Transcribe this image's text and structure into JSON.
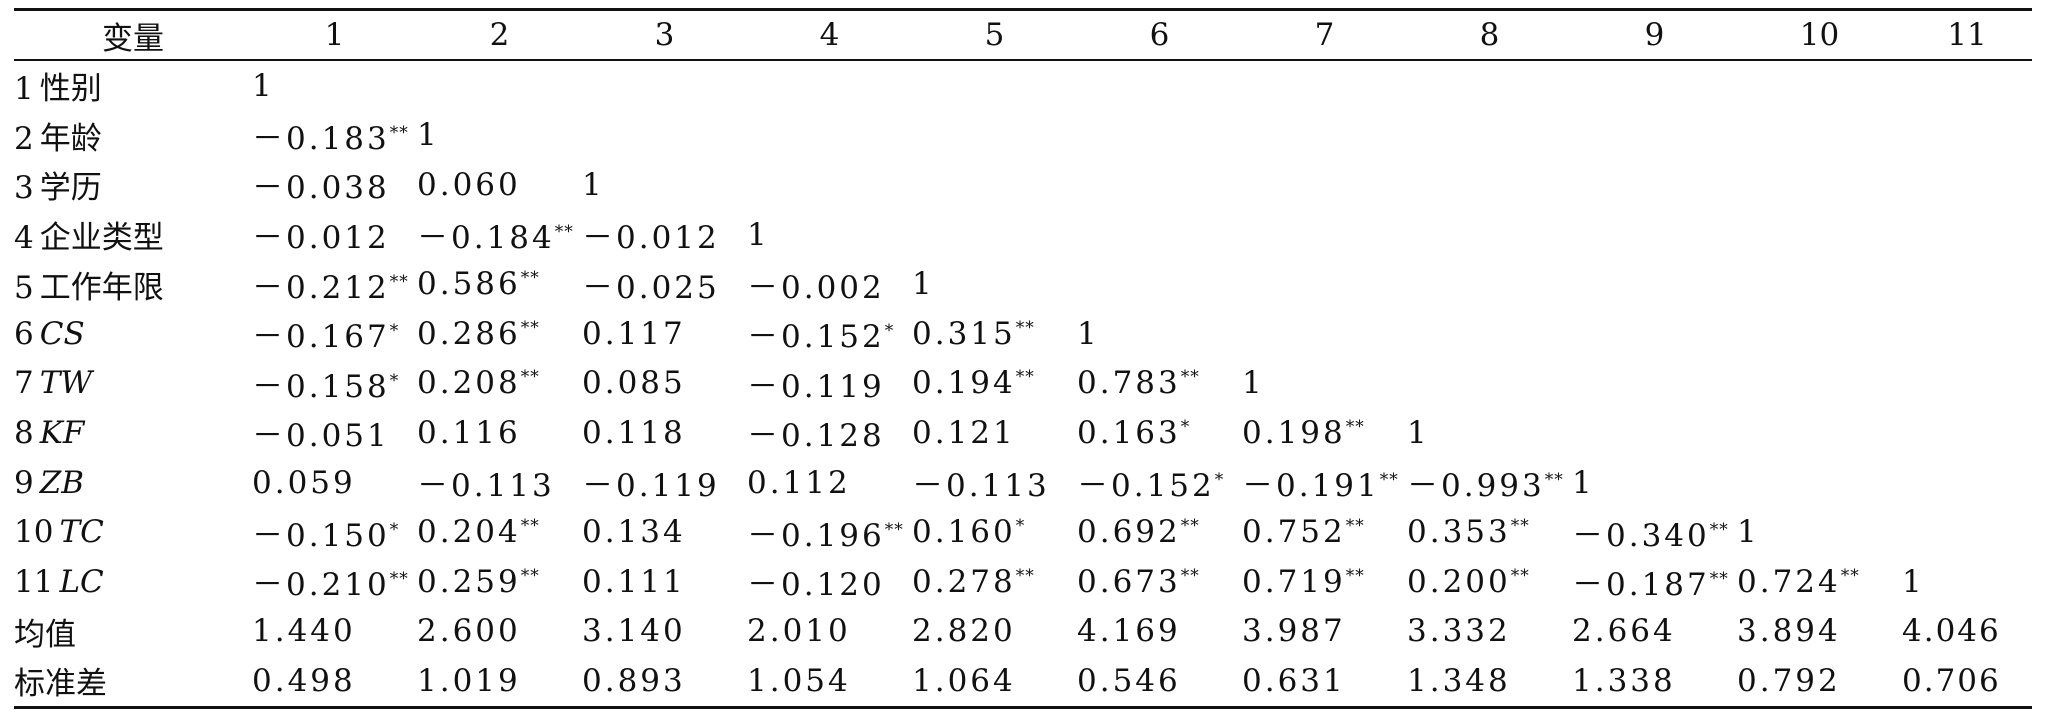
{
  "table": {
    "header": [
      "变量",
      "1",
      "2",
      "3",
      "4",
      "5",
      "6",
      "7",
      "8",
      "9",
      "10",
      "11"
    ],
    "rows": [
      {
        "num": "1",
        "label": "性别",
        "italic": false,
        "cells": [
          [
            "1",
            ""
          ],
          [
            "",
            ""
          ],
          [
            "",
            ""
          ],
          [
            "",
            ""
          ],
          [
            "",
            ""
          ],
          [
            "",
            ""
          ],
          [
            "",
            ""
          ],
          [
            "",
            ""
          ],
          [
            "",
            ""
          ],
          [
            "",
            ""
          ],
          [
            "",
            ""
          ]
        ]
      },
      {
        "num": "2",
        "label": "年龄",
        "italic": false,
        "cells": [
          [
            "－0.183",
            "**"
          ],
          [
            "1",
            ""
          ],
          [
            "",
            ""
          ],
          [
            "",
            ""
          ],
          [
            "",
            ""
          ],
          [
            "",
            ""
          ],
          [
            "",
            ""
          ],
          [
            "",
            ""
          ],
          [
            "",
            ""
          ],
          [
            "",
            ""
          ],
          [
            "",
            ""
          ]
        ]
      },
      {
        "num": "3",
        "label": "学历",
        "italic": false,
        "cells": [
          [
            "－0.038",
            ""
          ],
          [
            "0.060",
            ""
          ],
          [
            "1",
            ""
          ],
          [
            "",
            ""
          ],
          [
            "",
            ""
          ],
          [
            "",
            ""
          ],
          [
            "",
            ""
          ],
          [
            "",
            ""
          ],
          [
            "",
            ""
          ],
          [
            "",
            ""
          ],
          [
            "",
            ""
          ]
        ]
      },
      {
        "num": "4",
        "label": "企业类型",
        "italic": false,
        "cells": [
          [
            "－0.012",
            ""
          ],
          [
            "－0.184",
            "**"
          ],
          [
            "－0.012",
            ""
          ],
          [
            "1",
            ""
          ],
          [
            "",
            ""
          ],
          [
            "",
            ""
          ],
          [
            "",
            ""
          ],
          [
            "",
            ""
          ],
          [
            "",
            ""
          ],
          [
            "",
            ""
          ],
          [
            "",
            ""
          ]
        ]
      },
      {
        "num": "5",
        "label": "工作年限",
        "italic": false,
        "cells": [
          [
            "－0.212",
            "**"
          ],
          [
            "0.586",
            "**"
          ],
          [
            "－0.025",
            ""
          ],
          [
            "－0.002",
            ""
          ],
          [
            "1",
            ""
          ],
          [
            "",
            ""
          ],
          [
            "",
            ""
          ],
          [
            "",
            ""
          ],
          [
            "",
            ""
          ],
          [
            "",
            ""
          ],
          [
            "",
            ""
          ]
        ]
      },
      {
        "num": "6",
        "label": "CS",
        "italic": true,
        "cells": [
          [
            "－0.167",
            "*"
          ],
          [
            "0.286",
            "**"
          ],
          [
            "0.117",
            ""
          ],
          [
            "－0.152",
            "*"
          ],
          [
            "0.315",
            "**"
          ],
          [
            "1",
            ""
          ],
          [
            "",
            ""
          ],
          [
            "",
            ""
          ],
          [
            "",
            ""
          ],
          [
            "",
            ""
          ],
          [
            "",
            ""
          ]
        ]
      },
      {
        "num": "7",
        "label": "TW",
        "italic": true,
        "cells": [
          [
            "－0.158",
            "*"
          ],
          [
            "0.208",
            "**"
          ],
          [
            "0.085",
            ""
          ],
          [
            "－0.119",
            ""
          ],
          [
            "0.194",
            "**"
          ],
          [
            "0.783",
            "**"
          ],
          [
            "1",
            ""
          ],
          [
            "",
            ""
          ],
          [
            "",
            ""
          ],
          [
            "",
            ""
          ],
          [
            "",
            ""
          ]
        ]
      },
      {
        "num": "8",
        "label": "KF",
        "italic": true,
        "cells": [
          [
            "－0.051",
            ""
          ],
          [
            "0.116",
            ""
          ],
          [
            "0.118",
            ""
          ],
          [
            "－0.128",
            ""
          ],
          [
            "0.121",
            ""
          ],
          [
            "0.163",
            "*"
          ],
          [
            "0.198",
            "**"
          ],
          [
            "1",
            ""
          ],
          [
            "",
            ""
          ],
          [
            "",
            ""
          ],
          [
            "",
            ""
          ]
        ]
      },
      {
        "num": "9",
        "label": "ZB",
        "italic": true,
        "cells": [
          [
            "0.059",
            ""
          ],
          [
            "－0.113",
            ""
          ],
          [
            "－0.119",
            ""
          ],
          [
            "0.112",
            ""
          ],
          [
            "－0.113",
            ""
          ],
          [
            "－0.152",
            "*"
          ],
          [
            "－0.191",
            "**"
          ],
          [
            "－0.993",
            "**"
          ],
          [
            "1",
            ""
          ],
          [
            "",
            ""
          ],
          [
            "",
            ""
          ]
        ]
      },
      {
        "num": "10",
        "label": "TC",
        "italic": true,
        "cells": [
          [
            "－0.150",
            "*"
          ],
          [
            "0.204",
            "**"
          ],
          [
            "0.134",
            ""
          ],
          [
            "－0.196",
            "**"
          ],
          [
            "0.160",
            "*"
          ],
          [
            "0.692",
            "**"
          ],
          [
            "0.752",
            "**"
          ],
          [
            "0.353",
            "**"
          ],
          [
            "－0.340",
            "**"
          ],
          [
            "1",
            ""
          ],
          [
            "",
            ""
          ]
        ]
      },
      {
        "num": "11",
        "label": "LC",
        "italic": true,
        "cells": [
          [
            "－0.210",
            "**"
          ],
          [
            "0.259",
            "**"
          ],
          [
            "0.111",
            ""
          ],
          [
            "－0.120",
            ""
          ],
          [
            "0.278",
            "**"
          ],
          [
            "0.673",
            "**"
          ],
          [
            "0.719",
            "**"
          ],
          [
            "0.200",
            "**"
          ],
          [
            "－0.187",
            "**"
          ],
          [
            "0.724",
            "**"
          ],
          [
            "1",
            ""
          ]
        ]
      },
      {
        "num": "",
        "label": "均值",
        "italic": false,
        "cells": [
          [
            "1.440",
            ""
          ],
          [
            "2.600",
            ""
          ],
          [
            "3.140",
            ""
          ],
          [
            "2.010",
            ""
          ],
          [
            "2.820",
            ""
          ],
          [
            "4.169",
            ""
          ],
          [
            "3.987",
            ""
          ],
          [
            "3.332",
            ""
          ],
          [
            "2.664",
            ""
          ],
          [
            "3.894",
            ""
          ],
          [
            "4.046",
            ""
          ]
        ]
      },
      {
        "num": "",
        "label": "标准差",
        "italic": false,
        "cells": [
          [
            "0.498",
            ""
          ],
          [
            "1.019",
            ""
          ],
          [
            "0.893",
            ""
          ],
          [
            "1.054",
            ""
          ],
          [
            "1.064",
            ""
          ],
          [
            "0.546",
            ""
          ],
          [
            "0.631",
            ""
          ],
          [
            "1.348",
            ""
          ],
          [
            "1.338",
            ""
          ],
          [
            "0.792",
            ""
          ],
          [
            "0.706",
            ""
          ]
        ]
      }
    ]
  }
}
